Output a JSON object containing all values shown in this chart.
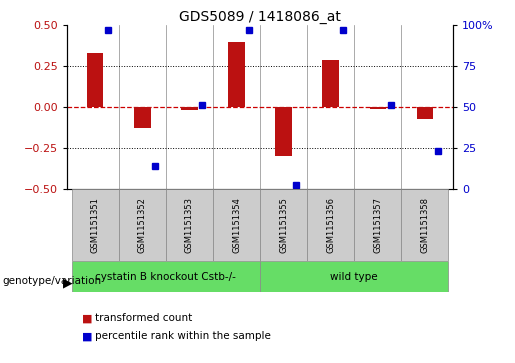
{
  "title": "GDS5089 / 1418086_at",
  "samples": [
    "GSM1151351",
    "GSM1151352",
    "GSM1151353",
    "GSM1151354",
    "GSM1151355",
    "GSM1151356",
    "GSM1151357",
    "GSM1151358"
  ],
  "red_values": [
    0.33,
    -0.13,
    -0.02,
    0.4,
    -0.3,
    0.29,
    -0.01,
    -0.07
  ],
  "blue_values_raw": [
    97,
    14,
    51,
    97,
    2,
    97,
    51,
    23
  ],
  "ylim_left": [
    -0.5,
    0.5
  ],
  "ylim_right": [
    0,
    100
  ],
  "yticks_left": [
    -0.5,
    -0.25,
    0,
    0.25,
    0.5
  ],
  "yticks_right": [
    0,
    25,
    50,
    75,
    100
  ],
  "ytick_labels_right": [
    "0",
    "25",
    "50",
    "75",
    "100%"
  ],
  "hlines": [
    0.25,
    0,
    -0.25
  ],
  "group1_label": "cystatin B knockout Cstb-/-",
  "group2_label": "wild type",
  "group1_color": "#66dd66",
  "group2_color": "#66dd66",
  "group1_indices": [
    0,
    1,
    2,
    3
  ],
  "group2_indices": [
    4,
    5,
    6,
    7
  ],
  "red_color": "#bb1111",
  "blue_color": "#0000cc",
  "zero_line_color": "#cc0000",
  "genotype_label": "genotype/variation",
  "legend_red": "transformed count",
  "legend_blue": "percentile rank within the sample",
  "bar_width": 0.35,
  "blue_marker_size": 6,
  "gray_color": "#cccccc",
  "cell_border_color": "#888888"
}
